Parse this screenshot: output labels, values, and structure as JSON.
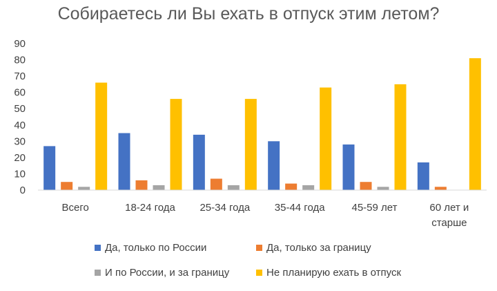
{
  "chart_data": {
    "type": "bar",
    "title": "Собираетесь ли Вы ехать в отпуск этим летом?",
    "categories": [
      "Всего",
      "18-24 года",
      "25-34 года",
      "35-44 года",
      "45-59 лет",
      "60 лет и старше"
    ],
    "category_lines": [
      [
        "Всего"
      ],
      [
        "18-24 года"
      ],
      [
        "25-34 года"
      ],
      [
        "35-44 года"
      ],
      [
        "45-59 лет"
      ],
      [
        "60 лет и",
        "старше"
      ]
    ],
    "series": [
      {
        "name": "Да, только по России",
        "color": "#4472C4",
        "values": [
          27,
          35,
          34,
          30,
          28,
          17
        ]
      },
      {
        "name": "Да, только за границу",
        "color": "#ED7D31",
        "values": [
          5,
          6,
          7,
          4,
          5,
          2
        ]
      },
      {
        "name": "И по России, и за границу",
        "color": "#A5A5A5",
        "values": [
          2,
          3,
          3,
          3,
          2,
          0
        ]
      },
      {
        "name": "Не планирую ехать в отпуск",
        "color": "#FFC000",
        "values": [
          66,
          56,
          56,
          63,
          65,
          81
        ]
      }
    ],
    "ylim": [
      0,
      90
    ],
    "yticks": [
      0,
      10,
      20,
      30,
      40,
      50,
      60,
      70,
      80,
      90
    ],
    "grid": false,
    "legend_position": "bottom"
  }
}
